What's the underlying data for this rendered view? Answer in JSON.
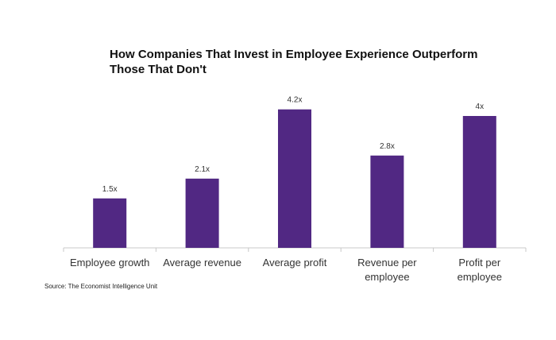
{
  "chart_data": {
    "type": "bar",
    "title_lines": [
      "How Companies That Invest in Employee Experience Outperform",
      "Those That Don't"
    ],
    "categories": [
      [
        "Employee growth"
      ],
      [
        "Average revenue"
      ],
      [
        "Average profit"
      ],
      [
        "Revenue per",
        "employee"
      ],
      [
        "Profit per",
        "employee"
      ]
    ],
    "values": [
      1.5,
      2.1,
      4.2,
      2.8,
      4.0
    ],
    "data_labels": [
      "1.5x",
      "2.1x",
      "4.2x",
      "2.8x",
      "4x"
    ],
    "ylim": [
      0,
      4.5
    ],
    "grid": false,
    "bar_color": "#512883",
    "axis_color": "#c8c8c8"
  },
  "source": "Source: The Economist Intelligence Unit"
}
